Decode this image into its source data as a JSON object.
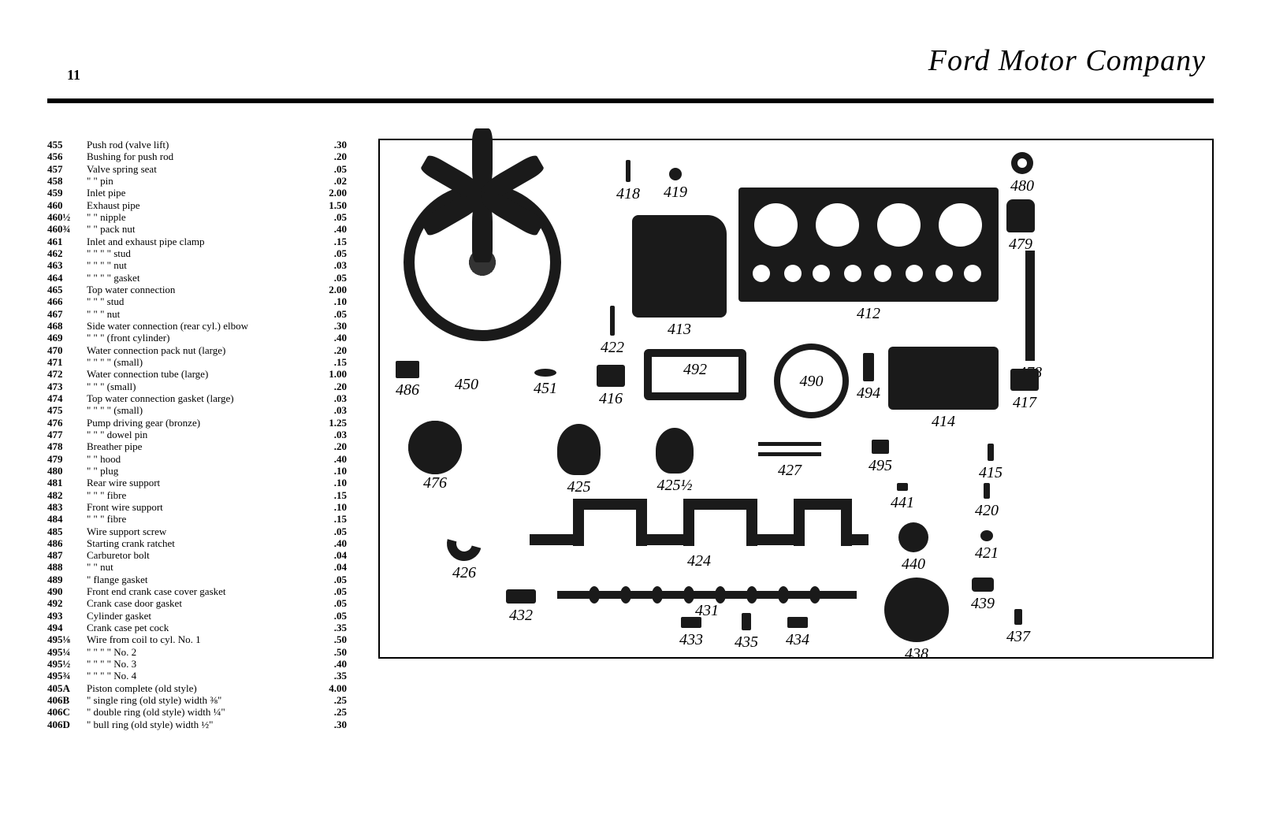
{
  "page_number": "11",
  "company_name": "Ford Motor Company",
  "parts": [
    {
      "num": "455",
      "desc": "Push rod (valve lift)",
      "price": ".30"
    },
    {
      "num": "456",
      "desc": "Bushing for push rod",
      "price": ".20"
    },
    {
      "num": "457",
      "desc": "Valve spring seat",
      "price": ".05"
    },
    {
      "num": "458",
      "desc": "   \"      \"      pin",
      "price": ".02"
    },
    {
      "num": "459",
      "desc": "Inlet pipe",
      "price": "2.00"
    },
    {
      "num": "460",
      "desc": "Exhaust pipe",
      "price": "1.50"
    },
    {
      "num": "460½",
      "desc": "   \"      \"   nipple",
      "price": ".05"
    },
    {
      "num": "460¾",
      "desc": "   \"      \"   pack nut",
      "price": ".40"
    },
    {
      "num": "461",
      "desc": "Inlet and exhaust pipe clamp",
      "price": ".15"
    },
    {
      "num": "462",
      "desc": "   \"      \"      \"      \"   stud",
      "price": ".05"
    },
    {
      "num": "463",
      "desc": "   \"      \"      \"      \"   nut",
      "price": ".03"
    },
    {
      "num": "464",
      "desc": "   \"      \"      \"      \"   gasket",
      "price": ".05"
    },
    {
      "num": "465",
      "desc": "Top water connection",
      "price": "2.00"
    },
    {
      "num": "466",
      "desc": "   \"      \"      \"   stud",
      "price": ".10"
    },
    {
      "num": "467",
      "desc": "   \"      \"      \"   nut",
      "price": ".05"
    },
    {
      "num": "468",
      "desc": "Side water connection (rear cyl.) elbow",
      "price": ".30"
    },
    {
      "num": "469",
      "desc": "   \"      \"      \"   (front cylinder)",
      "price": ".40"
    },
    {
      "num": "470",
      "desc": "Water connection pack nut (large)",
      "price": ".20"
    },
    {
      "num": "471",
      "desc": "   \"      \"      \"      \"   (small)",
      "price": ".15"
    },
    {
      "num": "472",
      "desc": "Water connection tube (large)",
      "price": "1.00"
    },
    {
      "num": "473",
      "desc": "   \"      \"      \"   (small)",
      "price": ".20"
    },
    {
      "num": "474",
      "desc": "Top water connection gasket (large)",
      "price": ".03"
    },
    {
      "num": "475",
      "desc": "   \"      \"      \"      \"   (small)",
      "price": ".03"
    },
    {
      "num": "476",
      "desc": "Pump driving gear (bronze)",
      "price": "1.25"
    },
    {
      "num": "477",
      "desc": "   \"      \"      \"   dowel pin",
      "price": ".03"
    },
    {
      "num": "478",
      "desc": "Breather pipe",
      "price": ".20"
    },
    {
      "num": "479",
      "desc": "   \"      \"   hood",
      "price": ".40"
    },
    {
      "num": "480",
      "desc": "   \"      \"   plug",
      "price": ".10"
    },
    {
      "num": "481",
      "desc": "Rear wire support",
      "price": ".10"
    },
    {
      "num": "482",
      "desc": "   \"      \"      \"   fibre",
      "price": ".15"
    },
    {
      "num": "483",
      "desc": "Front wire support",
      "price": ".10"
    },
    {
      "num": "484",
      "desc": "   \"      \"      \"   fibre",
      "price": ".15"
    },
    {
      "num": "485",
      "desc": "Wire support screw",
      "price": ".05"
    },
    {
      "num": "486",
      "desc": "Starting crank ratchet",
      "price": ".40"
    },
    {
      "num": "487",
      "desc": "Carburetor bolt",
      "price": ".04"
    },
    {
      "num": "488",
      "desc": "   \"      \"   nut",
      "price": ".04"
    },
    {
      "num": "489",
      "desc": "   \"      flange gasket",
      "price": ".05"
    },
    {
      "num": "490",
      "desc": "Front end crank case cover gasket",
      "price": ".05"
    },
    {
      "num": "492",
      "desc": "Crank case door gasket",
      "price": ".05"
    },
    {
      "num": "493",
      "desc": "Cylinder gasket",
      "price": ".05"
    },
    {
      "num": "494",
      "desc": "Crank case pet cock",
      "price": ".35"
    },
    {
      "num": "495⅛",
      "desc": "Wire from coil to cyl. No. 1",
      "price": ".50"
    },
    {
      "num": "495¼",
      "desc": "   \"      \"      \"      \"   No. 2",
      "price": ".50"
    },
    {
      "num": "495½",
      "desc": "   \"      \"      \"      \"   No. 3",
      "price": ".40"
    },
    {
      "num": "495¾",
      "desc": "   \"      \"      \"      \"   No. 4",
      "price": ".35"
    },
    {
      "num": "405A",
      "desc": "Piston complete (old style)",
      "price": "4.00"
    },
    {
      "num": "406B",
      "desc": "   \"   single ring (old style) width ⅜\"",
      "price": ".25"
    },
    {
      "num": "406C",
      "desc": "   \"   double ring (old style) width ¼\"",
      "price": ".25"
    },
    {
      "num": "406D",
      "desc": "   \"   bull ring (old style) width ½\"",
      "price": ".30"
    }
  ],
  "diagram_labels": {
    "l418": "418",
    "l419": "419",
    "l480": "480",
    "l479": "479",
    "l413": "413",
    "l412": "412",
    "l422": "422",
    "l486": "486",
    "l450": "450",
    "l451": "451",
    "l416": "416",
    "l492": "492",
    "l490": "490",
    "l494": "494",
    "l478": "478",
    "l414": "414",
    "l417": "417",
    "l476": "476",
    "l425": "425",
    "l425h": "425½",
    "l427": "427",
    "l495": "495",
    "l415": "415",
    "l441": "441",
    "l420": "420",
    "l426": "426",
    "l424": "424",
    "l440": "440",
    "l421": "421",
    "l432": "432",
    "l431": "431",
    "l433": "433",
    "l435": "435",
    "l434": "434",
    "l438": "438",
    "l437": "437",
    "l439": "439"
  }
}
